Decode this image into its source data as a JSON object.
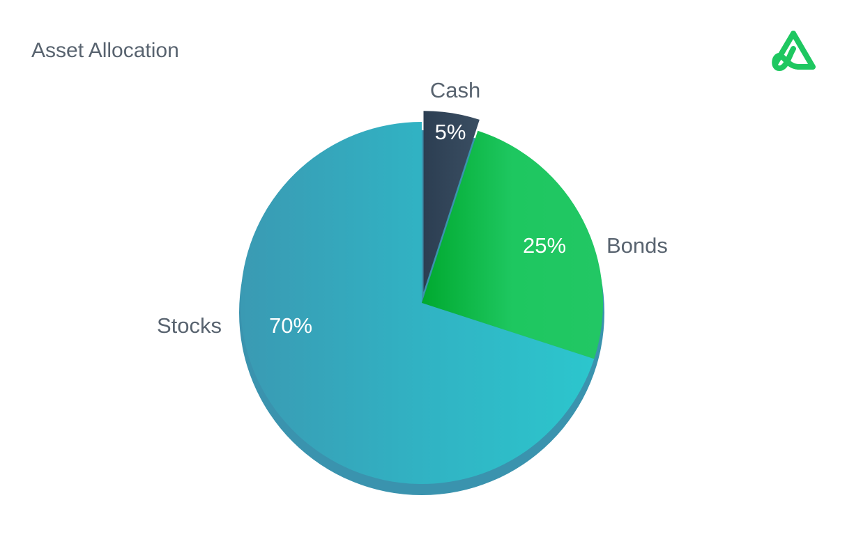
{
  "chart_data": {
    "type": "pie",
    "title": "Asset Allocation",
    "categories": [
      "Cash",
      "Bonds",
      "Stocks"
    ],
    "values": [
      5,
      25,
      70
    ],
    "value_labels": [
      "5%",
      "25%",
      "70%"
    ],
    "colors": [
      "#34495e",
      "#1ec760",
      "#31b2c3"
    ]
  }
}
